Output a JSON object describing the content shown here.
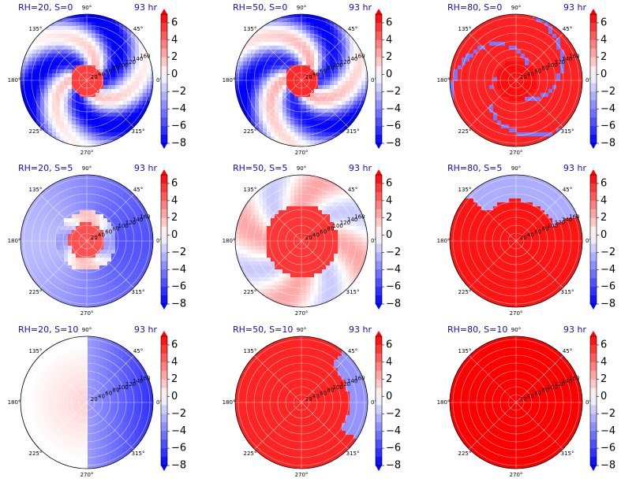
{
  "chart_data": {
    "type": "heatmap",
    "projection": "polar",
    "grid": true,
    "colormap": "bwr",
    "colorbar": {
      "ticks": [
        6,
        4,
        2,
        0,
        -2,
        -4,
        -6,
        -8
      ],
      "tick_labels": [
        "6",
        "4",
        "2",
        "0",
        "−2",
        "−4",
        "−6",
        "−8"
      ],
      "range": [
        -8,
        7
      ],
      "extend": "both"
    },
    "angle_labels": [
      "90°",
      "45°",
      "0°",
      "315°",
      "270°",
      "225°",
      "180°",
      "135°"
    ],
    "radial_ticks": [
      20,
      40,
      60,
      80,
      100,
      120,
      140,
      160
    ],
    "time_label": "93 hr",
    "panels": [
      {
        "title": "RH=20, S=0",
        "pattern": "spiral_positive_core",
        "level": -0.2
      },
      {
        "title": "RH=50, S=0",
        "pattern": "spiral_positive_core",
        "level": 0.2
      },
      {
        "title": "RH=80, S=0",
        "pattern": "mostly_positive_thin_negative_band",
        "level": 0.75
      },
      {
        "title": "RH=20, S=5",
        "pattern": "negative_with_positive_core",
        "level": -0.35
      },
      {
        "title": "RH=50, S=5",
        "pattern": "positive_core_mixed_edges",
        "level": 0.35
      },
      {
        "title": "RH=80, S=5",
        "pattern": "positive_negative_top_rim",
        "level": 0.8
      },
      {
        "title": "RH=20, S=10",
        "pattern": "light_positive_left_negative_right",
        "level": -0.3
      },
      {
        "title": "RH=50, S=10",
        "pattern": "positive_with_negative_east_edge",
        "level": 0.7
      },
      {
        "title": "RH=80, S=10",
        "pattern": "uniform_positive",
        "level": 1.0
      }
    ]
  }
}
